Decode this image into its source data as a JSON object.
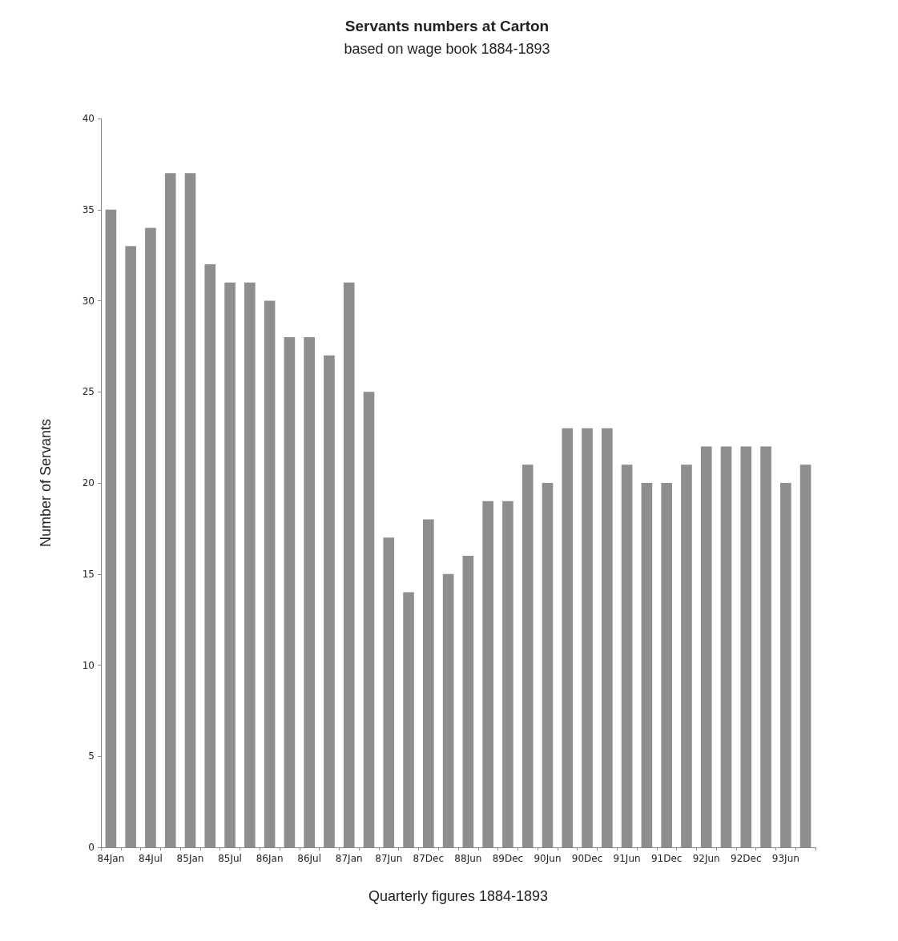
{
  "chart_data": {
    "type": "bar",
    "title": "Servants numbers at Carton",
    "subtitle": "based on wage book 1884-1893",
    "xlabel": "Quarterly figures 1884-1893",
    "ylabel": "Number of Servants",
    "categories": [
      "84Jan",
      null,
      "84Jul",
      null,
      "85Jan",
      null,
      "85Jul",
      null,
      "86Jan",
      null,
      "86Jul",
      null,
      "87Jan",
      null,
      "87Jun",
      null,
      "87Dec",
      null,
      "88Jun",
      null,
      "89Dec",
      null,
      "90Jun",
      null,
      "90Dec",
      null,
      "91Jun",
      null,
      "91Dec",
      null,
      "92Jun",
      null,
      "92Dec",
      null,
      "93Jun",
      null
    ],
    "values": [
      35,
      33,
      34,
      37,
      37,
      32,
      31,
      31,
      30,
      28,
      28,
      27,
      31,
      25,
      17,
      14,
      18,
      15,
      16,
      19,
      19,
      21,
      20,
      23,
      23,
      23,
      21,
      20,
      20,
      21,
      22,
      22,
      22,
      22,
      20,
      21
    ],
    "color": "#8e8e8e",
    "ylim": [
      0,
      40
    ],
    "yticks": [
      0,
      5,
      10,
      15,
      20,
      25,
      30,
      35,
      40
    ],
    "grid": false
  }
}
